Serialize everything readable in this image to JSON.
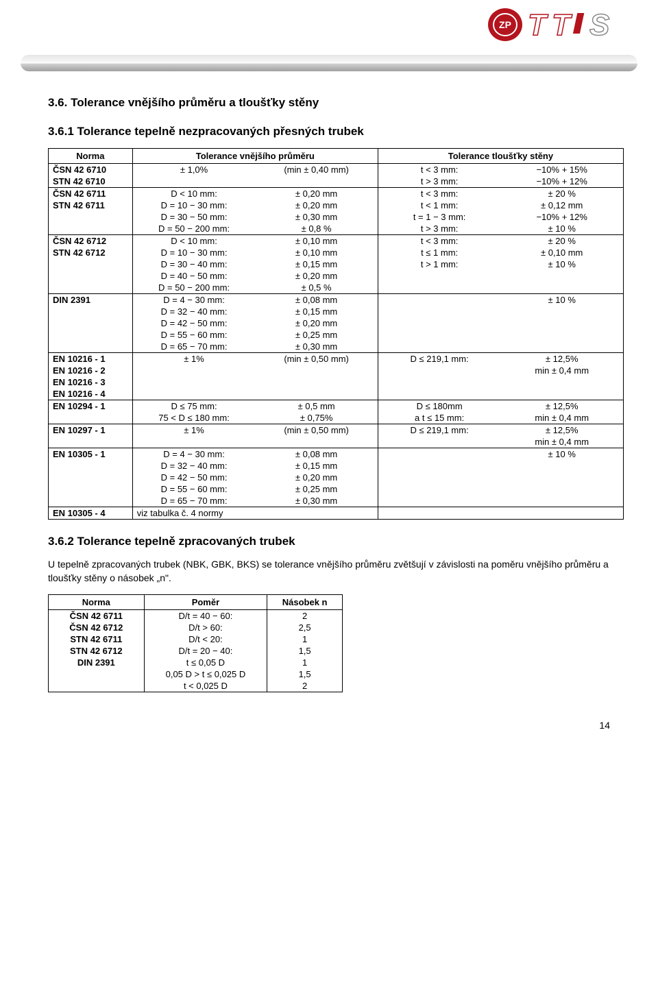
{
  "logo": {
    "zp_text": "ZP",
    "zp_bg": "#b4141e",
    "zp_inner": "#ffffff",
    "tts_text": "TTS",
    "tts_colors": [
      "#b4141e",
      "#b4141e",
      "#8a8a8a"
    ]
  },
  "h1": "3.6. Tolerance vnějšího průměru a tloušťky stěny",
  "h2": "3.6.1 Tolerance tepelně nezpracovaných přesných trubek",
  "table1": {
    "head": {
      "norma": "Norma",
      "tvp": "Tolerance vnějšího průměru",
      "tts": "Tolerance tloušťky stěny"
    },
    "rows": [
      {
        "a": "ČSN 42 6710",
        "b": "± 1,0%",
        "c": "(min ± 0,40 mm)",
        "d": "t < 3 mm:",
        "e": "−10%    + 15%",
        "bold": true,
        "hb": false
      },
      {
        "a": "STN 42 6710",
        "b": "",
        "c": "",
        "d": "t > 3 mm:",
        "e": "−10%    + 12%",
        "bold": true,
        "hb": true
      },
      {
        "a": "ČSN 42 6711",
        "b": "D < 10 mm:",
        "c": "± 0,20 mm",
        "d": "t < 3 mm:",
        "e": "± 20 %",
        "bold": true,
        "hb": false
      },
      {
        "a": "STN 42 6711",
        "b": "D = 10 − 30 mm:",
        "c": "± 0,20 mm",
        "d": "t < 1 mm:",
        "e": "± 0,12 mm",
        "bold": true,
        "hb": false
      },
      {
        "a": "",
        "b": "D = 30 − 50 mm:",
        "c": "± 0,30 mm",
        "d": "t = 1 − 3 mm:",
        "e": "−10%    + 12%",
        "bold": false,
        "hb": false
      },
      {
        "a": "",
        "b": "D = 50 − 200 mm:",
        "c": "± 0,8 %",
        "d": "t > 3 mm:",
        "e": "± 10 %",
        "bold": false,
        "hb": true
      },
      {
        "a": "ČSN 42 6712",
        "b": "D < 10 mm:",
        "c": "± 0,10 mm",
        "d": "t < 3 mm:",
        "e": "± 20 %",
        "bold": true,
        "hb": false
      },
      {
        "a": "STN 42 6712",
        "b": "D = 10 − 30 mm:",
        "c": "± 0,10 mm",
        "d": "t ≤ 1 mm:",
        "e": "± 0,10 mm",
        "bold": true,
        "hb": false
      },
      {
        "a": "",
        "b": "D = 30 − 40 mm:",
        "c": "± 0,15 mm",
        "d": "t > 1 mm:",
        "e": "± 10 %",
        "bold": false,
        "hb": false
      },
      {
        "a": "",
        "b": "D = 40 − 50 mm:",
        "c": "± 0,20 mm",
        "d": "",
        "e": "",
        "bold": false,
        "hb": false
      },
      {
        "a": "",
        "b": "D = 50 − 200 mm:",
        "c": "± 0,5 %",
        "d": "",
        "e": "",
        "bold": false,
        "hb": true
      },
      {
        "a": "DIN 2391",
        "b": "D = 4 − 30 mm:",
        "c": "± 0,08 mm",
        "d": "",
        "e": "± 10 %",
        "bold": true,
        "hb": false
      },
      {
        "a": "",
        "b": "D = 32 − 40 mm:",
        "c": "± 0,15 mm",
        "d": "",
        "e": "",
        "bold": false,
        "hb": false
      },
      {
        "a": "",
        "b": "D = 42 − 50 mm:",
        "c": "± 0,20 mm",
        "d": "",
        "e": "",
        "bold": false,
        "hb": false
      },
      {
        "a": "",
        "b": "D = 55 − 60 mm:",
        "c": "± 0,25 mm",
        "d": "",
        "e": "",
        "bold": false,
        "hb": false
      },
      {
        "a": "",
        "b": "D = 65 − 70 mm:",
        "c": "± 0,30 mm",
        "d": "",
        "e": "",
        "bold": false,
        "hb": true
      },
      {
        "a": "EN 10216 - 1",
        "b": "± 1%",
        "c": "(min ± 0,50 mm)",
        "d": "D ≤ 219,1 mm:",
        "e": "± 12,5%",
        "bold": true,
        "hb": false
      },
      {
        "a": "EN 10216 - 2",
        "b": "",
        "c": "",
        "d": "",
        "e": "min ± 0,4 mm",
        "bold": true,
        "hb": false
      },
      {
        "a": "EN 10216 - 3",
        "b": "",
        "c": "",
        "d": "",
        "e": "",
        "bold": true,
        "hb": false
      },
      {
        "a": "EN 10216 - 4",
        "b": "",
        "c": "",
        "d": "",
        "e": "",
        "bold": true,
        "hb": true
      },
      {
        "a": "EN 10294 - 1",
        "b": "D ≤ 75 mm:",
        "c": "± 0,5 mm",
        "d": "D ≤ 180mm",
        "e": "± 12,5%",
        "bold": true,
        "hb": false
      },
      {
        "a": "",
        "b": "75 < D ≤ 180 mm:",
        "c": "± 0,75%",
        "d": "a t ≤ 15 mm:",
        "e": "min ± 0,4 mm",
        "bold": false,
        "hb": true
      },
      {
        "a": "EN 10297 - 1",
        "b": "± 1%",
        "c": "(min ± 0,50 mm)",
        "d": "D ≤ 219,1 mm:",
        "e": "± 12,5%",
        "bold": true,
        "hb": false
      },
      {
        "a": "",
        "b": "",
        "c": "",
        "d": "",
        "e": "min ± 0,4 mm",
        "bold": false,
        "hb": true
      },
      {
        "a": "EN 10305 - 1",
        "b": "D = 4 − 30 mm:",
        "c": "± 0,08 mm",
        "d": "",
        "e": "± 10 %",
        "bold": true,
        "hb": false
      },
      {
        "a": "",
        "b": "D = 32 − 40 mm:",
        "c": "± 0,15 mm",
        "d": "",
        "e": "",
        "bold": false,
        "hb": false
      },
      {
        "a": "",
        "b": "D = 42 − 50 mm:",
        "c": "± 0,20 mm",
        "d": "",
        "e": "",
        "bold": false,
        "hb": false
      },
      {
        "a": "",
        "b": "D = 55 − 60 mm:",
        "c": "± 0,25 mm",
        "d": "",
        "e": "",
        "bold": false,
        "hb": false
      },
      {
        "a": "",
        "b": "D = 65 − 70 mm:",
        "c": "± 0,30 mm",
        "d": "",
        "e": "",
        "bold": false,
        "hb": true
      },
      {
        "a": "EN 10305 - 4",
        "b": "viz tabulka č. 4 normy",
        "c": "",
        "d": "",
        "e": "",
        "bold": true,
        "hb": false,
        "span": true
      }
    ]
  },
  "h3": "3.6.2 Tolerance tepelně zpracovaných trubek",
  "para": "U tepelně zpracovaných trubek (NBK, GBK, BKS) se tolerance vnějšího průměru zvětšují v závislosti na poměru vnějšího průměru a tloušťky stěny o násobek „n\".",
  "table2": {
    "head": {
      "norma": "Norma",
      "pomer": "Poměr",
      "nasobek": "Násobek n"
    },
    "rows": [
      {
        "a": "ČSN 42 6711",
        "b": "D/t = 40 − 60:",
        "c": "2",
        "bold": true
      },
      {
        "a": "ČSN 42 6712",
        "b": "D/t > 60:",
        "c": "2,5",
        "bold": true
      },
      {
        "a": "STN 42 6711",
        "b": "D/t < 20:",
        "c": "1",
        "bold": true
      },
      {
        "a": "STN 42 6712",
        "b": "D/t = 20 − 40:",
        "c": "1,5",
        "bold": true
      },
      {
        "a": "DIN 2391",
        "b": "t ≤ 0,05 D",
        "c": "1",
        "bold": true
      },
      {
        "a": "",
        "b": "0,05 D > t ≤ 0,025 D",
        "c": "1,5",
        "bold": false
      },
      {
        "a": "",
        "b": "t < 0,025 D",
        "c": "2",
        "bold": false
      }
    ]
  },
  "pagenum": "14"
}
